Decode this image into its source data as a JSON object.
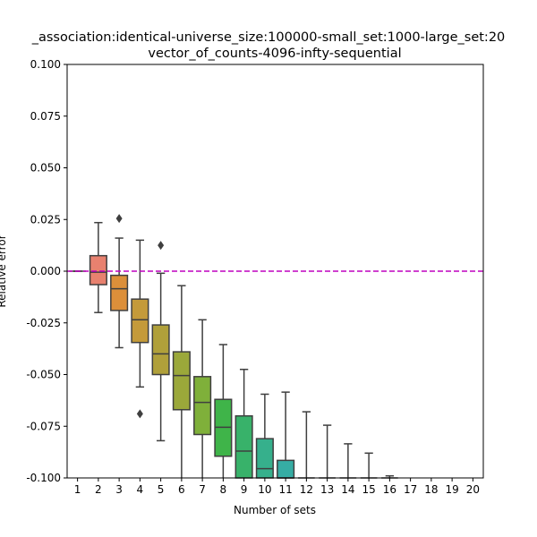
{
  "chart_data": {
    "type": "box",
    "title_line1": "_association:identical-universe_size:100000-small_set:1000-large_set:20",
    "title_line2": "vector_of_counts-4096-infty-sequential",
    "xlabel": "Number of sets",
    "ylabel": "Relative error",
    "ylim": [
      -0.1,
      0.1
    ],
    "yticks": [
      "0.100",
      "0.075",
      "0.050",
      "0.025",
      "0.000",
      "-0.025",
      "-0.050",
      "-0.075",
      "-0.100"
    ],
    "ytick_values": [
      0.1,
      0.075,
      0.05,
      0.025,
      0.0,
      -0.025,
      -0.05,
      -0.075,
      -0.1
    ],
    "categories": [
      "1",
      "2",
      "3",
      "4",
      "5",
      "6",
      "7",
      "8",
      "9",
      "10",
      "11",
      "12",
      "13",
      "14",
      "15",
      "16",
      "17",
      "18",
      "19",
      "20"
    ],
    "reference_line": {
      "y": 0.0,
      "color": "#bf00bf",
      "style": "dashed"
    },
    "grid": false,
    "boxes": [
      {
        "x": "1",
        "min": 0.0,
        "q1": 0.0,
        "median": 0.0,
        "q3": 0.0,
        "max": 0.0,
        "outliers": [],
        "color": "#e8868a"
      },
      {
        "x": "2",
        "min": -0.02,
        "q1": -0.0065,
        "median": -0.0005,
        "q3": 0.0075,
        "max": 0.0235,
        "outliers": [],
        "color": "#e8816f"
      },
      {
        "x": "3",
        "min": -0.037,
        "q1": -0.019,
        "median": -0.0085,
        "q3": -0.002,
        "max": 0.016,
        "outliers": [
          0.0255
        ],
        "color": "#dc8f3a"
      },
      {
        "x": "4",
        "min": -0.056,
        "q1": -0.0345,
        "median": -0.0235,
        "q3": -0.0135,
        "max": 0.015,
        "outliers": [
          -0.069
        ],
        "color": "#c49a3a"
      },
      {
        "x": "5",
        "min": -0.082,
        "q1": -0.05,
        "median": -0.04,
        "q3": -0.026,
        "max": -0.001,
        "outliers": [
          0.0125
        ],
        "color": "#b0a03a"
      },
      {
        "x": "6",
        "min": -0.1,
        "q1": -0.067,
        "median": -0.0505,
        "q3": -0.039,
        "max": -0.007,
        "outliers": [],
        "color": "#9ba83a"
      },
      {
        "x": "7",
        "min": -0.1,
        "q1": -0.079,
        "median": -0.0635,
        "q3": -0.051,
        "max": -0.0235,
        "outliers": [],
        "color": "#7fb03a"
      },
      {
        "x": "8",
        "min": -0.1,
        "q1": -0.0895,
        "median": -0.0755,
        "q3": -0.062,
        "max": -0.0355,
        "outliers": [],
        "color": "#3fb449"
      },
      {
        "x": "9",
        "min": -0.1,
        "q1": -0.1,
        "median": -0.087,
        "q3": -0.07,
        "max": -0.0475,
        "outliers": [],
        "color": "#38b26a"
      },
      {
        "x": "10",
        "min": -0.1,
        "q1": -0.1,
        "median": -0.0955,
        "q3": -0.081,
        "max": -0.0595,
        "outliers": [],
        "color": "#36b08c"
      },
      {
        "x": "11",
        "min": -0.1,
        "q1": -0.1,
        "median": -0.1,
        "q3": -0.0915,
        "max": -0.0585,
        "outliers": [],
        "color": "#36ada4"
      },
      {
        "x": "12",
        "min": -0.1,
        "q1": -0.1,
        "median": -0.1,
        "q3": -0.1,
        "max": -0.068,
        "outliers": [],
        "color": "#38aab8"
      },
      {
        "x": "13",
        "min": -0.1,
        "q1": -0.1,
        "median": -0.1,
        "q3": -0.1,
        "max": -0.0745,
        "outliers": [],
        "color": "#3aa6c6"
      },
      {
        "x": "14",
        "min": -0.1,
        "q1": -0.1,
        "median": -0.1,
        "q3": -0.1,
        "max": -0.0835,
        "outliers": [],
        "color": "#3ca0d2"
      },
      {
        "x": "15",
        "min": -0.1,
        "q1": -0.1,
        "median": -0.1,
        "q3": -0.1,
        "max": -0.088,
        "outliers": [],
        "color": "#4a98dc"
      },
      {
        "x": "16",
        "min": -0.1,
        "q1": -0.1,
        "median": -0.1,
        "q3": -0.1,
        "max": -0.099,
        "outliers": [],
        "color": "#6a8ee2"
      },
      {
        "x": "17",
        "min": null,
        "q1": null,
        "median": null,
        "q3": null,
        "max": null,
        "outliers": [],
        "color": "#8a84e6"
      },
      {
        "x": "18",
        "min": null,
        "q1": null,
        "median": null,
        "q3": null,
        "max": null,
        "outliers": [],
        "color": "#a67ae6"
      },
      {
        "x": "19",
        "min": null,
        "q1": null,
        "median": null,
        "q3": null,
        "max": null,
        "outliers": [],
        "color": "#c070e0"
      },
      {
        "x": "20",
        "min": null,
        "q1": null,
        "median": null,
        "q3": null,
        "max": null,
        "outliers": [],
        "color": "#d66ad0"
      }
    ]
  }
}
